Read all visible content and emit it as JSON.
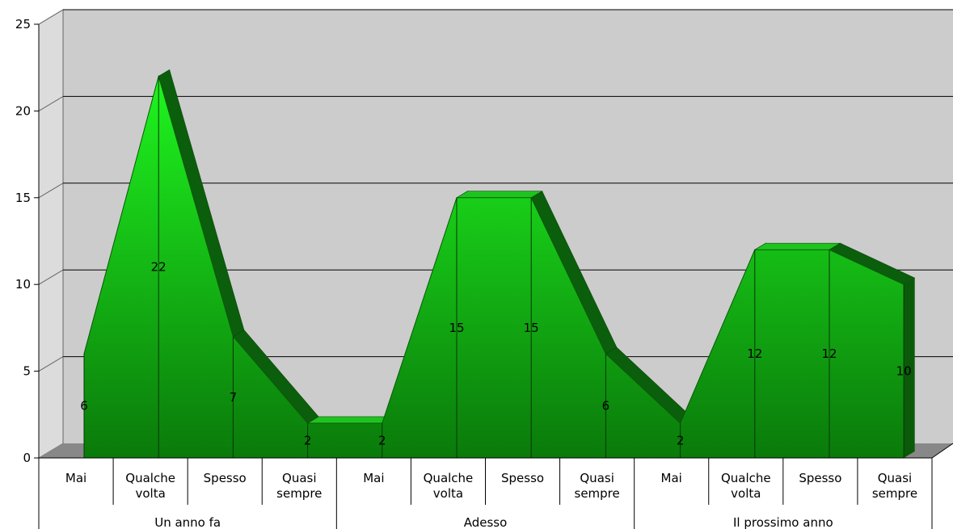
{
  "chart_data": {
    "type": "area",
    "title": "",
    "xlabel": "",
    "ylabel": "",
    "ylim": [
      0,
      25
    ],
    "yticks": [
      0,
      5,
      10,
      15,
      20,
      25
    ],
    "grid": true,
    "legend": "none",
    "colors": {
      "area_light": "#1ee81e",
      "area_dark": "#0a7a0a",
      "side": "#0b5e0b",
      "wall": "#cccccc",
      "floor": "#888888"
    },
    "groups": [
      {
        "name": "Un anno fa",
        "categories": [
          "Mai",
          "Qualche volta",
          "Spesso",
          "Quasi sempre"
        ]
      },
      {
        "name": "Adesso",
        "categories": [
          "Mai",
          "Qualche volta",
          "Spesso",
          "Quasi sempre"
        ]
      },
      {
        "name": "Il prossimo anno",
        "categories": [
          "Mai",
          "Qualche volta",
          "Spesso",
          "Quasi sempre"
        ]
      }
    ],
    "categories": [
      "Mai",
      "Qualche volta",
      "Spesso",
      "Quasi sempre",
      "Mai",
      "Qualche volta",
      "Spesso",
      "Quasi sempre",
      "Mai",
      "Qualche volta",
      "Spesso",
      "Quasi sempre"
    ],
    "values": [
      6,
      22,
      7,
      2,
      2,
      15,
      15,
      6,
      2,
      12,
      12,
      10
    ],
    "data_labels": [
      "6",
      "22",
      "7",
      "2",
      "2",
      "15",
      "15",
      "6",
      "2",
      "12",
      "12",
      "10"
    ]
  }
}
